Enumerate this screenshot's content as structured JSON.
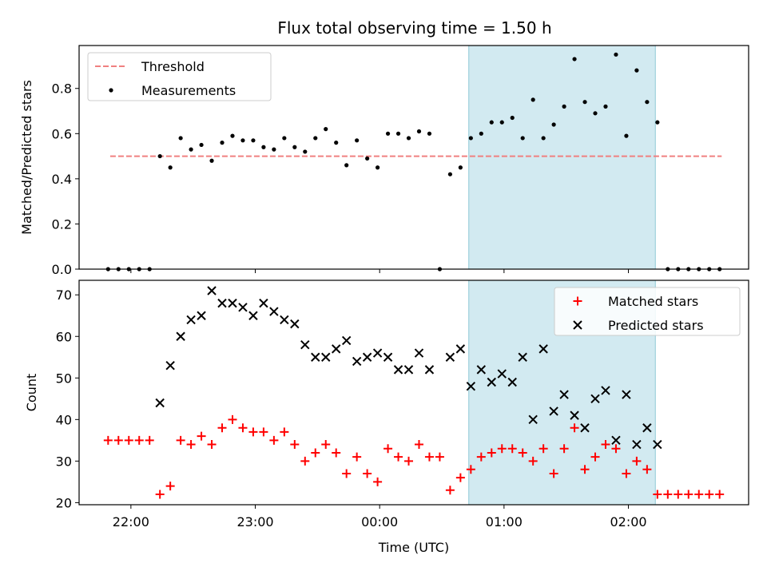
{
  "title": "Flux total observing time = 1.50 h",
  "chart_data": [
    {
      "type": "scatter",
      "ylabel": "Matched/Predicted stars",
      "xlim": [
        "21:35",
        "02:58"
      ],
      "ylim": [
        0,
        0.99
      ],
      "yticks": [
        "0.0",
        "0.2",
        "0.4",
        "0.6",
        "0.8"
      ],
      "x_tick_positions": [
        "22:00",
        "23:00",
        "00:00",
        "01:00",
        "02:00"
      ],
      "x_tick_labels_shown": false,
      "observing_window": {
        "start": "00:43",
        "end": "02:13",
        "color": "#add8e6"
      },
      "threshold": {
        "name": "Threshold",
        "value": 0.5,
        "x_range": [
          "21:50",
          "02:45"
        ],
        "color": "#f08080",
        "style": "dashed"
      },
      "series": [
        {
          "name": "Measurements",
          "color": "#000000",
          "marker": "dot",
          "points": [
            [
              "21:49",
              0.0
            ],
            [
              "21:54",
              0.0
            ],
            [
              "21:59",
              0.0
            ],
            [
              "22:04",
              0.0
            ],
            [
              "22:09",
              0.0
            ],
            [
              "22:14",
              0.5
            ],
            [
              "22:19",
              0.45
            ],
            [
              "22:24",
              0.58
            ],
            [
              "22:29",
              0.53
            ],
            [
              "22:34",
              0.55
            ],
            [
              "22:39",
              0.48
            ],
            [
              "22:44",
              0.56
            ],
            [
              "22:49",
              0.59
            ],
            [
              "22:54",
              0.57
            ],
            [
              "22:59",
              0.57
            ],
            [
              "23:04",
              0.54
            ],
            [
              "23:09",
              0.53
            ],
            [
              "23:14",
              0.58
            ],
            [
              "23:19",
              0.54
            ],
            [
              "23:24",
              0.52
            ],
            [
              "23:29",
              0.58
            ],
            [
              "23:34",
              0.62
            ],
            [
              "23:39",
              0.56
            ],
            [
              "23:44",
              0.46
            ],
            [
              "23:49",
              0.57
            ],
            [
              "23:54",
              0.49
            ],
            [
              "23:59",
              0.45
            ],
            [
              "00:04",
              0.6
            ],
            [
              "00:09",
              0.6
            ],
            [
              "00:14",
              0.58
            ],
            [
              "00:19",
              0.61
            ],
            [
              "00:24",
              0.6
            ],
            [
              "00:29",
              0.0
            ],
            [
              "00:34",
              0.42
            ],
            [
              "00:39",
              0.45
            ],
            [
              "00:44",
              0.58
            ],
            [
              "00:49",
              0.6
            ],
            [
              "00:54",
              0.65
            ],
            [
              "00:59",
              0.65
            ],
            [
              "01:04",
              0.67
            ],
            [
              "01:09",
              0.58
            ],
            [
              "01:14",
              0.75
            ],
            [
              "01:19",
              0.58
            ],
            [
              "01:24",
              0.64
            ],
            [
              "01:29",
              0.72
            ],
            [
              "01:34",
              0.93
            ],
            [
              "01:39",
              0.74
            ],
            [
              "01:44",
              0.69
            ],
            [
              "01:49",
              0.72
            ],
            [
              "01:54",
              0.95
            ],
            [
              "01:59",
              0.59
            ],
            [
              "02:04",
              0.88
            ],
            [
              "02:09",
              0.74
            ],
            [
              "02:14",
              0.65
            ],
            [
              "02:19",
              0.0
            ],
            [
              "02:24",
              0.0
            ],
            [
              "02:29",
              0.0
            ],
            [
              "02:34",
              0.0
            ],
            [
              "02:39",
              0.0
            ],
            [
              "02:44",
              0.0
            ]
          ]
        }
      ],
      "legend": "upper-left"
    },
    {
      "type": "scatter",
      "xlabel": "Time (UTC)",
      "ylabel": "Count",
      "xlim": [
        "21:35",
        "02:58"
      ],
      "ylim": [
        19.5,
        73.5
      ],
      "yticks": [
        "20",
        "30",
        "40",
        "50",
        "60",
        "70"
      ],
      "xticks": [
        "22:00",
        "23:00",
        "00:00",
        "01:00",
        "02:00"
      ],
      "observing_window": {
        "start": "00:43",
        "end": "02:13",
        "color": "#add8e6"
      },
      "series": [
        {
          "name": "Matched stars",
          "color": "#ff0000",
          "marker": "plus",
          "points": [
            [
              "21:49",
              35
            ],
            [
              "21:54",
              35
            ],
            [
              "21:59",
              35
            ],
            [
              "22:04",
              35
            ],
            [
              "22:09",
              35
            ],
            [
              "22:14",
              22
            ],
            [
              "22:19",
              24
            ],
            [
              "22:24",
              35
            ],
            [
              "22:29",
              34
            ],
            [
              "22:34",
              36
            ],
            [
              "22:39",
              34
            ],
            [
              "22:44",
              38
            ],
            [
              "22:49",
              40
            ],
            [
              "22:54",
              38
            ],
            [
              "22:59",
              37
            ],
            [
              "23:04",
              37
            ],
            [
              "23:09",
              35
            ],
            [
              "23:14",
              37
            ],
            [
              "23:19",
              34
            ],
            [
              "23:24",
              30
            ],
            [
              "23:29",
              32
            ],
            [
              "23:34",
              34
            ],
            [
              "23:39",
              32
            ],
            [
              "23:44",
              27
            ],
            [
              "23:49",
              31
            ],
            [
              "23:54",
              27
            ],
            [
              "23:59",
              25
            ],
            [
              "00:04",
              33
            ],
            [
              "00:09",
              31
            ],
            [
              "00:14",
              30
            ],
            [
              "00:19",
              34
            ],
            [
              "00:24",
              31
            ],
            [
              "00:29",
              31
            ],
            [
              "00:34",
              23
            ],
            [
              "00:39",
              26
            ],
            [
              "00:44",
              28
            ],
            [
              "00:49",
              31
            ],
            [
              "00:54",
              32
            ],
            [
              "00:59",
              33
            ],
            [
              "01:04",
              33
            ],
            [
              "01:09",
              32
            ],
            [
              "01:14",
              30
            ],
            [
              "01:19",
              33
            ],
            [
              "01:24",
              27
            ],
            [
              "01:29",
              33
            ],
            [
              "01:34",
              38
            ],
            [
              "01:39",
              28
            ],
            [
              "01:44",
              31
            ],
            [
              "01:49",
              34
            ],
            [
              "01:54",
              33
            ],
            [
              "01:59",
              27
            ],
            [
              "02:04",
              30
            ],
            [
              "02:09",
              28
            ],
            [
              "02:14",
              22
            ],
            [
              "02:19",
              22
            ],
            [
              "02:24",
              22
            ],
            [
              "02:29",
              22
            ],
            [
              "02:34",
              22
            ],
            [
              "02:39",
              22
            ],
            [
              "02:44",
              22
            ]
          ]
        },
        {
          "name": "Predicted stars",
          "color": "#000000",
          "marker": "x",
          "points": [
            [
              "22:14",
              44
            ],
            [
              "22:19",
              53
            ],
            [
              "22:24",
              60
            ],
            [
              "22:29",
              64
            ],
            [
              "22:34",
              65
            ],
            [
              "22:39",
              71
            ],
            [
              "22:44",
              68
            ],
            [
              "22:49",
              68
            ],
            [
              "22:54",
              67
            ],
            [
              "22:59",
              65
            ],
            [
              "23:04",
              68
            ],
            [
              "23:09",
              66
            ],
            [
              "23:14",
              64
            ],
            [
              "23:19",
              63
            ],
            [
              "23:24",
              58
            ],
            [
              "23:29",
              55
            ],
            [
              "23:34",
              55
            ],
            [
              "23:39",
              57
            ],
            [
              "23:44",
              59
            ],
            [
              "23:49",
              54
            ],
            [
              "23:54",
              55
            ],
            [
              "23:59",
              56
            ],
            [
              "00:04",
              55
            ],
            [
              "00:09",
              52
            ],
            [
              "00:14",
              52
            ],
            [
              "00:19",
              56
            ],
            [
              "00:24",
              52
            ],
            [
              "00:34",
              55
            ],
            [
              "00:39",
              57
            ],
            [
              "00:44",
              48
            ],
            [
              "00:49",
              52
            ],
            [
              "00:54",
              49
            ],
            [
              "00:59",
              51
            ],
            [
              "01:04",
              49
            ],
            [
              "01:09",
              55
            ],
            [
              "01:14",
              40
            ],
            [
              "01:19",
              57
            ],
            [
              "01:24",
              42
            ],
            [
              "01:29",
              46
            ],
            [
              "01:34",
              41
            ],
            [
              "01:39",
              38
            ],
            [
              "01:44",
              45
            ],
            [
              "01:49",
              47
            ],
            [
              "01:54",
              35
            ],
            [
              "01:59",
              46
            ],
            [
              "02:04",
              34
            ],
            [
              "02:09",
              38
            ],
            [
              "02:14",
              34
            ]
          ]
        }
      ],
      "legend": "upper-right"
    }
  ]
}
